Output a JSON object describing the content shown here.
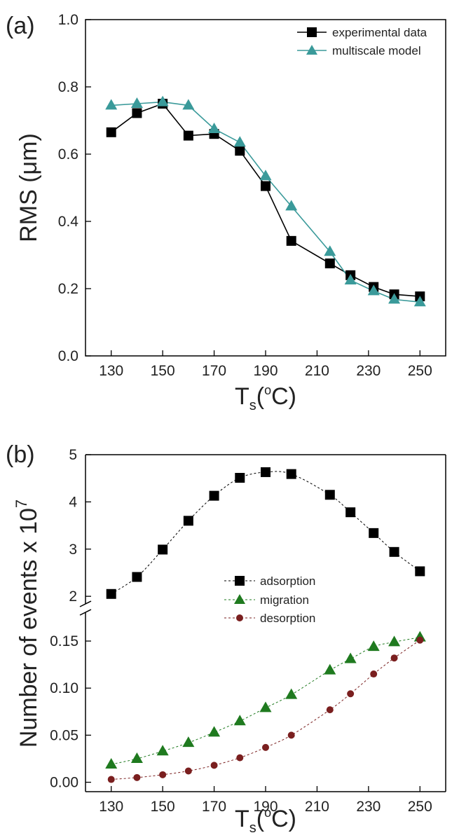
{
  "chart_data": [
    {
      "type": "line",
      "panel_label": "(a)",
      "ylabel": "RMS (μm)",
      "xlabel_main": "T",
      "xlabel_sub": "s",
      "xlabel_tail_open": "(",
      "xlabel_sup": "o",
      "xlabel_tail_close": "C)",
      "xlim": [
        120,
        260
      ],
      "ylim": [
        0,
        1.0
      ],
      "xticks": [
        "130",
        "150",
        "170",
        "190",
        "210",
        "230",
        "250"
      ],
      "yticks": [
        "0.0",
        "0.2",
        "0.4",
        "0.6",
        "0.8",
        "1.0"
      ],
      "legend_position": "top-right",
      "series": [
        {
          "name": "experimental data",
          "color": "#000000",
          "marker": "square",
          "x": [
            130,
            140,
            150,
            160,
            170,
            180,
            190,
            200,
            215,
            223,
            232,
            240,
            250
          ],
          "y": [
            0.665,
            0.722,
            0.75,
            0.655,
            0.66,
            0.61,
            0.505,
            0.342,
            0.275,
            0.24,
            0.205,
            0.183,
            0.177
          ]
        },
        {
          "name": "multiscale model",
          "color": "#3a9a9a",
          "marker": "triangle",
          "x": [
            130,
            140,
            150,
            160,
            170,
            180,
            190,
            200,
            215,
            223,
            232,
            240,
            250
          ],
          "y": [
            0.745,
            0.75,
            0.755,
            0.745,
            0.675,
            0.635,
            0.535,
            0.445,
            0.31,
            0.225,
            0.193,
            0.168,
            0.16
          ]
        }
      ]
    },
    {
      "type": "scatter",
      "panel_label": "(b)",
      "ylabel_main": "Number of events x 10",
      "ylabel_sup": "7",
      "xlabel_main": "T",
      "xlabel_sub": "s",
      "xlabel_tail_open": "(",
      "xlabel_sup": "o",
      "xlabel_tail_close": "C)",
      "xlim": [
        120,
        260
      ],
      "broken_y_axis": true,
      "ylim_lower": [
        -0.01,
        0.185
      ],
      "ylim_upper": [
        1.75,
        5.0
      ],
      "xticks": [
        "130",
        "150",
        "170",
        "190",
        "210",
        "230",
        "250"
      ],
      "yticks_lower": [
        "0.00",
        "0.05",
        "0.10",
        "0.15"
      ],
      "yticks_upper": [
        "2",
        "3",
        "4",
        "5"
      ],
      "legend_position": "center-right",
      "series": [
        {
          "name": "adsorption",
          "color": "#000000",
          "marker": "square",
          "x": [
            130,
            140,
            150,
            160,
            170,
            180,
            190,
            200,
            215,
            223,
            232,
            240,
            250
          ],
          "y": [
            2.05,
            2.41,
            2.99,
            3.6,
            4.13,
            4.51,
            4.63,
            4.59,
            4.15,
            3.78,
            3.34,
            2.94,
            2.53
          ]
        },
        {
          "name": "migration",
          "color": "#1f7a1f",
          "marker": "triangle",
          "x": [
            130,
            140,
            150,
            160,
            170,
            180,
            190,
            200,
            215,
            223,
            232,
            240,
            250
          ],
          "y": [
            0.019,
            0.025,
            0.033,
            0.042,
            0.053,
            0.065,
            0.079,
            0.093,
            0.119,
            0.131,
            0.144,
            0.149,
            0.154
          ]
        },
        {
          "name": "desorption",
          "color": "#7a1f1f",
          "marker": "circle",
          "x": [
            130,
            140,
            150,
            160,
            170,
            180,
            190,
            200,
            215,
            223,
            232,
            240,
            250
          ],
          "y": [
            0.003,
            0.005,
            0.008,
            0.012,
            0.018,
            0.026,
            0.037,
            0.05,
            0.077,
            0.094,
            0.115,
            0.132,
            0.151
          ]
        }
      ]
    }
  ]
}
